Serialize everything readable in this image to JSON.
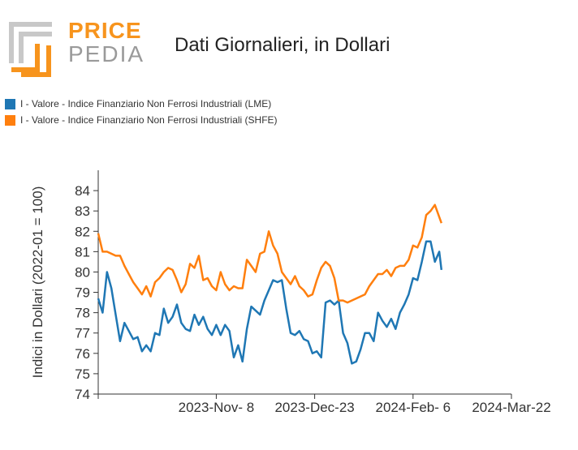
{
  "logo": {
    "word1": "PRICE",
    "word2": "PEDIA"
  },
  "title": "Dati Giornalieri, in Dollari",
  "legend": [
    {
      "label": "I - Valore - Indice Finanziario Non Ferrosi Industriali (LME)",
      "color": "#1f77b4"
    },
    {
      "label": "I - Valore - Indice Finanziario Non Ferrosi Industriali (SHFE)",
      "color": "#ff7f0e"
    }
  ],
  "chart_data": {
    "type": "line",
    "ylabel": "Indici in Dollari (2022-01 = 100)",
    "xlabel": "",
    "ylim": [
      74,
      85
    ],
    "yticks": [
      74,
      75,
      76,
      77,
      78,
      79,
      80,
      81,
      82,
      83,
      84
    ],
    "xlim": [
      "2023-09-15",
      "2024-03-22"
    ],
    "xticks": [
      {
        "date": "2023-11-08",
        "label": "2023-Nov- 8"
      },
      {
        "date": "2023-12-23",
        "label": "2023-Dec-23"
      },
      {
        "date": "2024-02-06",
        "label": "2024-Feb- 6"
      },
      {
        "date": "2024-03-22",
        "label": "2024-Mar-22"
      }
    ],
    "series": [
      {
        "name": "I - Valore - Indice Finanziario Non Ferrosi Industriali (LME)",
        "color": "#1f77b4",
        "points": [
          [
            "2023-09-15",
            78.7
          ],
          [
            "2023-09-17",
            78.0
          ],
          [
            "2023-09-19",
            80.0
          ],
          [
            "2023-09-21",
            79.2
          ],
          [
            "2023-09-23",
            77.9
          ],
          [
            "2023-09-25",
            76.6
          ],
          [
            "2023-09-27",
            77.5
          ],
          [
            "2023-09-29",
            77.1
          ],
          [
            "2023-10-01",
            76.7
          ],
          [
            "2023-10-03",
            76.8
          ],
          [
            "2023-10-05",
            76.1
          ],
          [
            "2023-10-07",
            76.4
          ],
          [
            "2023-10-09",
            76.1
          ],
          [
            "2023-10-11",
            77.0
          ],
          [
            "2023-10-13",
            76.9
          ],
          [
            "2023-10-15",
            78.2
          ],
          [
            "2023-10-17",
            77.5
          ],
          [
            "2023-10-19",
            77.8
          ],
          [
            "2023-10-21",
            78.4
          ],
          [
            "2023-10-23",
            77.5
          ],
          [
            "2023-10-25",
            77.2
          ],
          [
            "2023-10-27",
            77.1
          ],
          [
            "2023-10-29",
            77.9
          ],
          [
            "2023-10-31",
            77.4
          ],
          [
            "2023-11-02",
            77.8
          ],
          [
            "2023-11-04",
            77.2
          ],
          [
            "2023-11-06",
            76.9
          ],
          [
            "2023-11-08",
            77.4
          ],
          [
            "2023-11-10",
            76.9
          ],
          [
            "2023-11-12",
            77.4
          ],
          [
            "2023-11-14",
            77.1
          ],
          [
            "2023-11-16",
            75.8
          ],
          [
            "2023-11-18",
            76.4
          ],
          [
            "2023-11-20",
            75.6
          ],
          [
            "2023-11-22",
            77.2
          ],
          [
            "2023-11-24",
            78.3
          ],
          [
            "2023-11-26",
            78.1
          ],
          [
            "2023-11-28",
            77.9
          ],
          [
            "2023-11-30",
            78.6
          ],
          [
            "2023-12-02",
            79.1
          ],
          [
            "2023-12-04",
            79.6
          ],
          [
            "2023-12-06",
            79.5
          ],
          [
            "2023-12-08",
            79.6
          ],
          [
            "2023-12-10",
            78.2
          ],
          [
            "2023-12-12",
            77.0
          ],
          [
            "2023-12-14",
            76.9
          ],
          [
            "2023-12-16",
            77.1
          ],
          [
            "2023-12-18",
            76.7
          ],
          [
            "2023-12-20",
            76.6
          ],
          [
            "2023-12-22",
            76.0
          ],
          [
            "2023-12-24",
            76.1
          ],
          [
            "2023-12-26",
            75.8
          ],
          [
            "2023-12-28",
            78.5
          ],
          [
            "2023-12-30",
            78.6
          ],
          [
            "2024-01-01",
            78.4
          ],
          [
            "2024-01-03",
            78.6
          ],
          [
            "2024-01-05",
            77.0
          ],
          [
            "2024-01-07",
            76.5
          ],
          [
            "2024-01-09",
            75.5
          ],
          [
            "2024-01-11",
            75.6
          ],
          [
            "2024-01-13",
            76.2
          ],
          [
            "2024-01-15",
            77.0
          ],
          [
            "2024-01-17",
            77.0
          ],
          [
            "2024-01-19",
            76.6
          ],
          [
            "2024-01-21",
            78.0
          ],
          [
            "2024-01-23",
            77.6
          ],
          [
            "2024-01-25",
            77.3
          ],
          [
            "2024-01-27",
            77.7
          ],
          [
            "2024-01-29",
            77.2
          ],
          [
            "2024-01-31",
            78.0
          ],
          [
            "2024-02-02",
            78.4
          ],
          [
            "2024-02-04",
            78.9
          ],
          [
            "2024-02-06",
            79.7
          ],
          [
            "2024-02-08",
            79.6
          ],
          [
            "2024-02-10",
            80.5
          ],
          [
            "2024-02-12",
            81.5
          ],
          [
            "2024-02-14",
            81.5
          ],
          [
            "2024-02-16",
            80.5
          ],
          [
            "2024-02-18",
            81.0
          ],
          [
            "2024-02-19",
            80.1
          ]
        ]
      },
      {
        "name": "I - Valore - Indice Finanziario Non Ferrosi Industriali (SHFE)",
        "color": "#ff7f0e",
        "points": [
          [
            "2023-09-15",
            81.9
          ],
          [
            "2023-09-17",
            81.0
          ],
          [
            "2023-09-19",
            81.0
          ],
          [
            "2023-09-21",
            80.9
          ],
          [
            "2023-09-23",
            80.8
          ],
          [
            "2023-09-25",
            80.8
          ],
          [
            "2023-09-27",
            80.3
          ],
          [
            "2023-09-29",
            79.9
          ],
          [
            "2023-10-01",
            79.5
          ],
          [
            "2023-10-03",
            79.2
          ],
          [
            "2023-10-05",
            78.9
          ],
          [
            "2023-10-07",
            79.3
          ],
          [
            "2023-10-09",
            78.8
          ],
          [
            "2023-10-11",
            79.5
          ],
          [
            "2023-10-13",
            79.7
          ],
          [
            "2023-10-15",
            80.0
          ],
          [
            "2023-10-17",
            80.2
          ],
          [
            "2023-10-19",
            80.1
          ],
          [
            "2023-10-21",
            79.6
          ],
          [
            "2023-10-23",
            79.0
          ],
          [
            "2023-10-25",
            79.4
          ],
          [
            "2023-10-27",
            80.4
          ],
          [
            "2023-10-29",
            80.2
          ],
          [
            "2023-10-31",
            80.8
          ],
          [
            "2023-11-02",
            79.6
          ],
          [
            "2023-11-04",
            79.7
          ],
          [
            "2023-11-06",
            79.3
          ],
          [
            "2023-11-08",
            79.1
          ],
          [
            "2023-11-10",
            80.0
          ],
          [
            "2023-11-12",
            79.4
          ],
          [
            "2023-11-14",
            79.1
          ],
          [
            "2023-11-16",
            79.3
          ],
          [
            "2023-11-18",
            79.2
          ],
          [
            "2023-11-20",
            79.2
          ],
          [
            "2023-11-22",
            80.6
          ],
          [
            "2023-11-24",
            80.3
          ],
          [
            "2023-11-26",
            80.0
          ],
          [
            "2023-11-28",
            80.9
          ],
          [
            "2023-11-30",
            81.0
          ],
          [
            "2023-12-02",
            82.0
          ],
          [
            "2023-12-04",
            81.3
          ],
          [
            "2023-12-06",
            80.9
          ],
          [
            "2023-12-08",
            80.0
          ],
          [
            "2023-12-10",
            79.7
          ],
          [
            "2023-12-12",
            79.4
          ],
          [
            "2023-12-14",
            79.8
          ],
          [
            "2023-12-16",
            79.3
          ],
          [
            "2023-12-18",
            79.1
          ],
          [
            "2023-12-20",
            78.8
          ],
          [
            "2023-12-22",
            78.9
          ],
          [
            "2023-12-24",
            79.6
          ],
          [
            "2023-12-26",
            80.2
          ],
          [
            "2023-12-28",
            80.5
          ],
          [
            "2023-12-30",
            80.3
          ],
          [
            "2024-01-01",
            79.7
          ],
          [
            "2024-01-03",
            78.6
          ],
          [
            "2024-01-05",
            78.6
          ],
          [
            "2024-01-07",
            78.5
          ],
          [
            "2024-01-09",
            78.6
          ],
          [
            "2024-01-11",
            78.7
          ],
          [
            "2024-01-13",
            78.8
          ],
          [
            "2024-01-15",
            78.9
          ],
          [
            "2024-01-17",
            79.3
          ],
          [
            "2024-01-19",
            79.6
          ],
          [
            "2024-01-21",
            79.9
          ],
          [
            "2024-01-23",
            79.9
          ],
          [
            "2024-01-25",
            80.1
          ],
          [
            "2024-01-27",
            79.8
          ],
          [
            "2024-01-29",
            80.2
          ],
          [
            "2024-01-31",
            80.3
          ],
          [
            "2024-02-02",
            80.3
          ],
          [
            "2024-02-04",
            80.6
          ],
          [
            "2024-02-06",
            81.3
          ],
          [
            "2024-02-08",
            81.2
          ],
          [
            "2024-02-10",
            81.7
          ],
          [
            "2024-02-12",
            82.8
          ],
          [
            "2024-02-14",
            83.0
          ],
          [
            "2024-02-16",
            83.3
          ],
          [
            "2024-02-18",
            82.7
          ],
          [
            "2024-02-19",
            82.4
          ]
        ]
      }
    ],
    "grid": false,
    "legend_position": "top-left"
  }
}
